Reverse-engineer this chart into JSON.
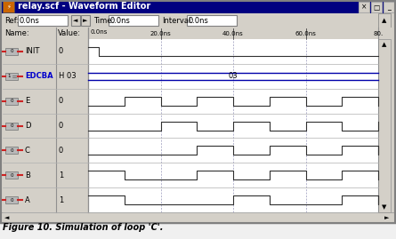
{
  "title": "relay.scf - Waveform Editor",
  "figure_caption": "Figure 10. Simulation of loop 'C'.",
  "win_bg": "#d4d0c8",
  "titlebar_color": "#000080",
  "waveform_bg": "#ffffff",
  "signals": [
    "INIT",
    "EDCBA",
    "E",
    "D",
    "C",
    "B",
    "A"
  ],
  "values": [
    "0",
    "H 03",
    "0",
    "0",
    "0",
    "1",
    "1"
  ],
  "edcba_label": "03",
  "time_labels": [
    "20.0ns",
    "40.0ns",
    "60.0ns",
    "80."
  ],
  "time_ticks_ns": [
    0,
    20,
    40,
    60,
    80
  ],
  "x_max_ns": 80,
  "waveform_color": "#303030",
  "blue_line_color": "#0000aa",
  "dashed_color": "#9999bb",
  "icon_bg": "#aaaaaa",
  "icon_red": "#cc2222",
  "INIT_wave": [
    1,
    1,
    0,
    0,
    0,
    0,
    0,
    0,
    0,
    0
  ],
  "INIT_t": [
    0,
    3,
    3,
    4,
    10,
    20,
    30,
    40,
    60,
    80
  ],
  "E_wave": [
    0,
    0,
    1,
    1,
    0,
    0,
    1,
    1,
    0,
    0,
    1,
    1,
    0,
    0,
    1,
    1,
    0
  ],
  "E_t": [
    0,
    10,
    10,
    20,
    20,
    30,
    30,
    40,
    40,
    50,
    50,
    60,
    60,
    70,
    70,
    80,
    80
  ],
  "D_wave": [
    0,
    0,
    0,
    1,
    1,
    0,
    0,
    1,
    1,
    0,
    0,
    1,
    1,
    0,
    0,
    1,
    1
  ],
  "D_t": [
    0,
    10,
    20,
    20,
    30,
    30,
    40,
    40,
    50,
    50,
    60,
    60,
    70,
    70,
    80,
    80,
    80
  ],
  "C_wave": [
    0,
    0,
    0,
    0,
    1,
    1,
    0,
    0,
    1,
    1,
    0,
    0,
    1,
    1,
    0,
    0,
    1
  ],
  "C_t": [
    0,
    10,
    20,
    30,
    30,
    40,
    40,
    50,
    50,
    60,
    60,
    70,
    70,
    80,
    80,
    80,
    80
  ],
  "B_wave": [
    1,
    1,
    0,
    0,
    0,
    1,
    1,
    0,
    0,
    1,
    1,
    0,
    0,
    1,
    1,
    0,
    0
  ],
  "B_t": [
    0,
    10,
    10,
    20,
    30,
    30,
    40,
    40,
    50,
    50,
    60,
    60,
    70,
    70,
    80,
    80,
    80
  ],
  "A_wave": [
    1,
    1,
    0,
    0,
    0,
    0,
    1,
    1,
    0,
    0,
    0,
    1,
    1,
    0,
    0,
    0,
    1
  ],
  "A_t": [
    0,
    10,
    10,
    20,
    30,
    40,
    40,
    50,
    50,
    60,
    70,
    70,
    80,
    80,
    80,
    80,
    80
  ]
}
